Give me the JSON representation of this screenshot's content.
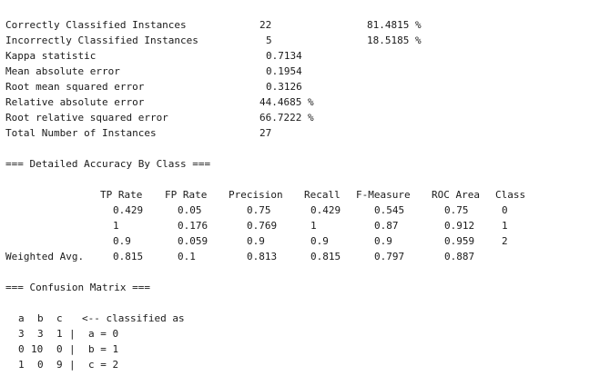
{
  "summary": {
    "rows": [
      {
        "label": "Correctly Classified Instances",
        "value": "22",
        "percent": "81.4815 %"
      },
      {
        "label": "Incorrectly Classified Instances",
        "value": "5",
        "percent": "18.5185 %"
      },
      {
        "label": "Kappa statistic",
        "value": "0.7134"
      },
      {
        "label": "Mean absolute error",
        "value": "0.1954"
      },
      {
        "label": "Root mean squared error",
        "value": "0.3126"
      },
      {
        "label": "Relative absolute error",
        "value": "44.4685 %"
      },
      {
        "label": "Root relative squared error",
        "value": "66.7222 %"
      },
      {
        "label": "Total Number of Instances",
        "value": "27"
      }
    ]
  },
  "detailed": {
    "title": "=== Detailed Accuracy By Class ===",
    "headers": [
      "TP Rate",
      "FP Rate",
      "Precision",
      "Recall",
      "F-Measure",
      "ROC Area",
      "Class"
    ],
    "rows": [
      {
        "label": "",
        "values": [
          "0.429",
          "0.05",
          "0.75",
          "0.429",
          "0.545",
          "0.75",
          "0"
        ]
      },
      {
        "label": "",
        "values": [
          "1",
          "0.176",
          "0.769",
          "1",
          "0.87",
          "0.912",
          "1"
        ]
      },
      {
        "label": "",
        "values": [
          "0.9",
          "0.059",
          "0.9",
          "0.9",
          "0.9",
          "0.959",
          "2"
        ]
      },
      {
        "label": "Weighted Avg.",
        "values": [
          "0.815",
          "0.1",
          "0.813",
          "0.815",
          "0.797",
          "0.887",
          ""
        ]
      }
    ]
  },
  "confusion": {
    "title": "=== Confusion Matrix ===",
    "header": {
      "cols": [
        "a",
        "b",
        "c"
      ],
      "caption": "<-- classified as"
    },
    "rows": [
      {
        "cells": [
          "3",
          "3",
          "1"
        ],
        "sep": "|",
        "label": "a = 0"
      },
      {
        "cells": [
          "0",
          "10",
          "0"
        ],
        "sep": "|",
        "label": "b = 1"
      },
      {
        "cells": [
          "1",
          "0",
          "9"
        ],
        "sep": "|",
        "label": "c = 2"
      }
    ]
  }
}
